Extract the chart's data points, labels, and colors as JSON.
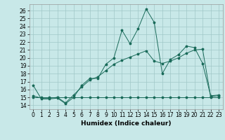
{
  "xlabel": "Humidex (Indice chaleur)",
  "xlim": [
    -0.5,
    23.5
  ],
  "ylim": [
    13.5,
    26.8
  ],
  "yticks": [
    14,
    15,
    16,
    17,
    18,
    19,
    20,
    21,
    22,
    23,
    24,
    25,
    26
  ],
  "xticks": [
    0,
    1,
    2,
    3,
    4,
    5,
    6,
    7,
    8,
    9,
    10,
    11,
    12,
    13,
    14,
    15,
    16,
    17,
    18,
    19,
    20,
    21,
    22,
    23
  ],
  "bg_color": "#c8e8e8",
  "line_color": "#1a6b5a",
  "grid_color": "#a0c8c8",
  "line1_x": [
    0,
    1,
    2,
    3,
    4,
    5,
    6,
    7,
    8,
    9,
    10,
    11,
    12,
    13,
    14,
    15,
    16,
    17,
    18,
    19,
    20,
    21,
    22,
    23
  ],
  "line1_y": [
    16.5,
    14.8,
    14.8,
    14.9,
    14.2,
    15.0,
    16.5,
    17.4,
    17.4,
    19.2,
    20.0,
    23.5,
    21.8,
    23.7,
    26.2,
    24.5,
    18.0,
    19.8,
    20.4,
    21.5,
    21.3,
    19.3,
    15.2,
    15.3
  ],
  "line2_x": [
    0,
    1,
    2,
    3,
    4,
    5,
    6,
    7,
    8,
    9,
    10,
    11,
    12,
    13,
    14,
    15,
    16,
    17,
    18,
    19,
    20,
    21,
    22,
    23
  ],
  "line2_y": [
    15.0,
    15.0,
    15.0,
    15.0,
    15.0,
    15.0,
    15.0,
    15.0,
    15.0,
    15.0,
    15.0,
    15.0,
    15.0,
    15.0,
    15.0,
    15.0,
    15.0,
    15.0,
    15.0,
    15.0,
    15.0,
    15.0,
    15.0,
    15.0
  ],
  "line3_x": [
    0,
    1,
    2,
    3,
    4,
    5,
    6,
    7,
    8,
    9,
    10,
    11,
    12,
    13,
    14,
    15,
    16,
    17,
    18,
    19,
    20,
    21,
    22,
    23
  ],
  "line3_y": [
    15.2,
    14.9,
    14.9,
    15.0,
    14.3,
    15.3,
    16.3,
    17.2,
    17.6,
    18.4,
    19.2,
    19.7,
    20.1,
    20.5,
    20.9,
    19.6,
    19.3,
    19.6,
    20.0,
    20.6,
    21.0,
    21.1,
    15.1,
    15.2
  ],
  "tick_fontsize": 5.5,
  "xlabel_fontsize": 6.5
}
